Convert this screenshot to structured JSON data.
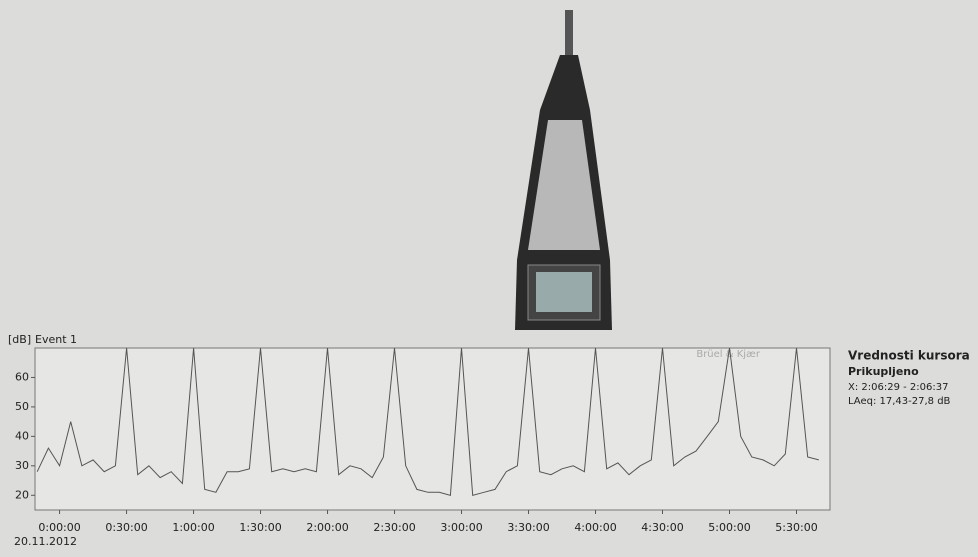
{
  "chart_data": {
    "type": "line",
    "title": "Event 1",
    "y_label": "[dB]",
    "logo": "Brüel & Kjær",
    "x_date_label": "20.11.2012",
    "x": [
      -10,
      -5,
      0,
      5,
      10,
      15,
      20,
      25,
      30,
      35,
      40,
      45,
      50,
      55,
      60,
      65,
      70,
      75,
      80,
      85,
      90,
      95,
      100,
      105,
      110,
      115,
      120,
      125,
      130,
      135,
      140,
      145,
      150,
      155,
      160,
      165,
      170,
      175,
      180,
      185,
      190,
      195,
      200,
      205,
      210,
      215,
      220,
      225,
      230,
      235,
      240,
      245,
      250,
      255,
      260,
      265,
      270,
      275,
      280,
      285,
      290,
      295,
      300,
      305,
      310,
      315,
      320,
      325,
      330,
      335,
      340
    ],
    "series": [
      {
        "color": "#555555",
        "values": [
          28,
          36,
          30,
          45,
          30,
          32,
          28,
          30,
          70,
          27,
          30,
          26,
          28,
          24,
          70,
          22,
          21,
          28,
          28,
          29,
          70,
          28,
          29,
          28,
          29,
          28,
          70,
          27,
          30,
          29,
          26,
          33,
          70,
          30,
          22,
          21,
          21,
          20,
          70,
          20,
          21,
          22,
          28,
          30,
          70,
          28,
          27,
          29,
          30,
          28,
          70,
          29,
          31,
          27,
          30,
          32,
          70,
          30,
          33,
          35,
          40,
          45,
          70,
          40,
          33,
          32,
          30,
          34,
          70,
          33,
          32
        ]
      }
    ],
    "xlim": [
      -11,
      345
    ],
    "ylim": [
      15,
      70
    ],
    "yticks": [
      20,
      30,
      40,
      50,
      60
    ],
    "xticks": [
      {
        "value": 0,
        "label": "0:00:00"
      },
      {
        "value": 30,
        "label": "0:30:00"
      },
      {
        "value": 60,
        "label": "1:00:00"
      },
      {
        "value": 90,
        "label": "1:30:00"
      },
      {
        "value": 120,
        "label": "2:00:00"
      },
      {
        "value": 150,
        "label": "2:30:00"
      },
      {
        "value": 180,
        "label": "3:00:00"
      },
      {
        "value": 210,
        "label": "3:30:00"
      },
      {
        "value": 240,
        "label": "4:00:00"
      },
      {
        "value": 270,
        "label": "4:30:00"
      },
      {
        "value": 300,
        "label": "5:00:00"
      },
      {
        "value": 330,
        "label": "5:30:00"
      }
    ],
    "cursor_panel": {
      "title": "Vrednosti kursora",
      "subtitle": "Prikupljeno",
      "x": "X: 2:06:29 - 2:06:37",
      "laeq": "LAeq: 17,43-27,8 dB"
    }
  }
}
